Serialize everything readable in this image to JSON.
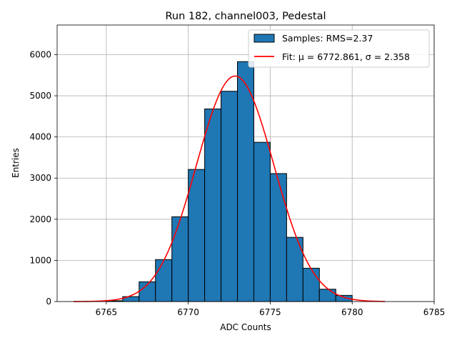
{
  "chart_data": {
    "type": "bar",
    "title": "Run 182, channel003, Pedestal",
    "xlabel": "ADC Counts",
    "ylabel": "Entries",
    "xlim": [
      6762,
      6785
    ],
    "ylim": [
      0,
      6720
    ],
    "xticks": [
      6765,
      6770,
      6775,
      6780,
      6785
    ],
    "yticks": [
      0,
      1000,
      2000,
      3000,
      4000,
      5000,
      6000
    ],
    "grid": true,
    "legend_position": "top-right",
    "histogram": {
      "name": "Samples: RMS=2.37",
      "color": "#1f77b4",
      "edge_color": "#000000",
      "bin_edges": [
        6765,
        6766,
        6767,
        6768,
        6769,
        6770,
        6771,
        6772,
        6773,
        6774,
        6775,
        6776,
        6777,
        6778,
        6779,
        6780
      ],
      "counts": [
        20,
        120,
        480,
        1020,
        2060,
        3210,
        4680,
        5110,
        5830,
        3870,
        3110,
        1560,
        810,
        300,
        150
      ]
    },
    "fit": {
      "name": "Fit: μ = 6772.861, σ = 2.358",
      "color": "#ff0000",
      "mu": 6772.861,
      "sigma": 2.358,
      "amplitude": 5480,
      "x_range": [
        6763,
        6782
      ]
    }
  }
}
